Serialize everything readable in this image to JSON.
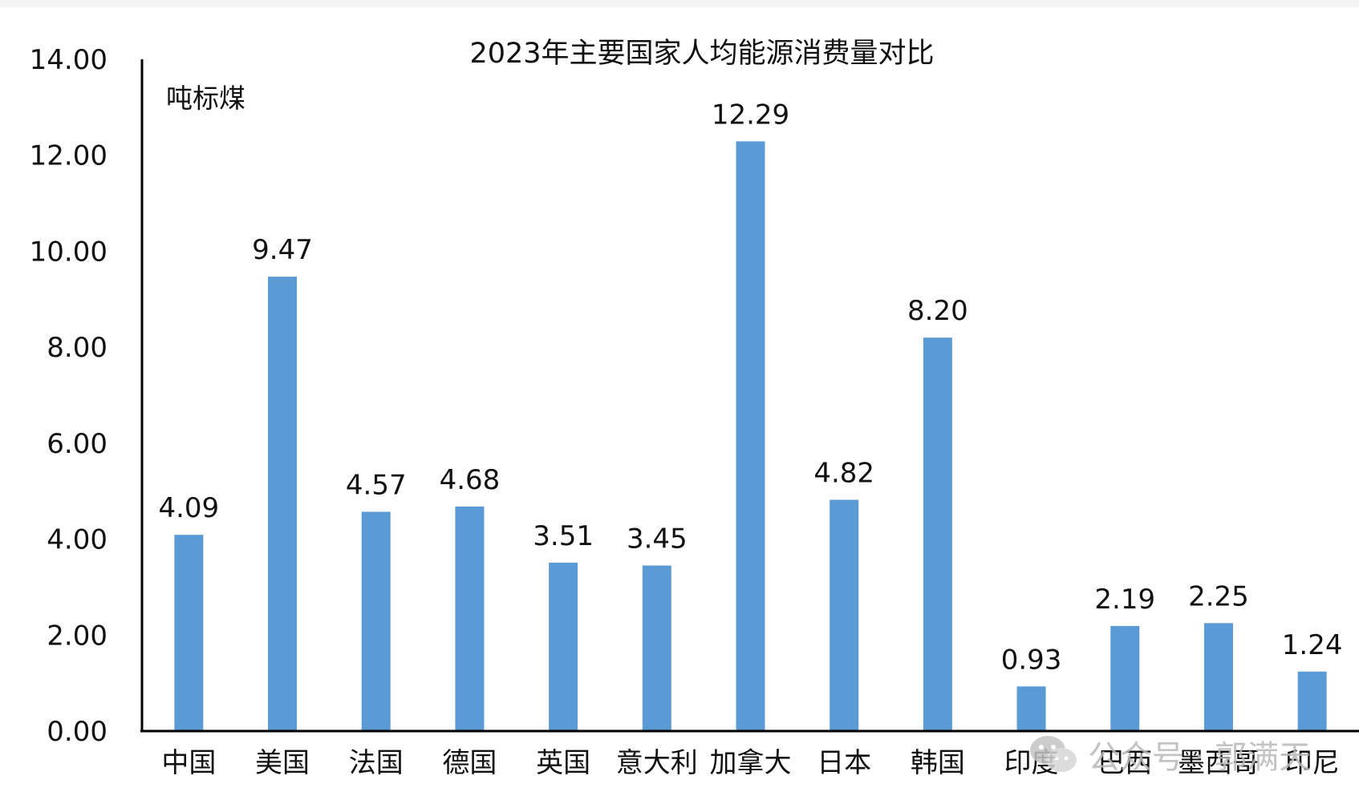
{
  "chart_data": {
    "type": "bar",
    "title": "2023年主要国家人均能源消费量对比",
    "unit_label": "吨标煤",
    "xlabel": "",
    "ylabel": "",
    "categories": [
      "中国",
      "美国",
      "法国",
      "德国",
      "英国",
      "意大利",
      "加拿大",
      "日本",
      "韩国",
      "印度",
      "巴西",
      "墨西哥",
      "印尼"
    ],
    "values": [
      4.09,
      9.47,
      4.57,
      4.68,
      3.51,
      3.45,
      12.29,
      4.82,
      8.2,
      0.93,
      2.19,
      2.25,
      1.24
    ],
    "value_labels": [
      "4.09",
      "9.47",
      "4.57",
      "4.68",
      "3.51",
      "3.45",
      "12.29",
      "4.82",
      "8.20",
      "0.93",
      "2.19",
      "2.25",
      "1.24"
    ],
    "ylim": [
      0,
      14
    ],
    "yticks": [
      0,
      2,
      4,
      6,
      8,
      10,
      12,
      14
    ],
    "ytick_labels": [
      "0.00",
      "2.00",
      "4.00",
      "6.00",
      "8.00",
      "10.00",
      "12.00",
      "14.00"
    ],
    "grid": false,
    "bar_color": "#5b9bd5"
  },
  "watermark": {
    "icon": "wechat-icon",
    "text": "公众号 · 郭满天"
  }
}
